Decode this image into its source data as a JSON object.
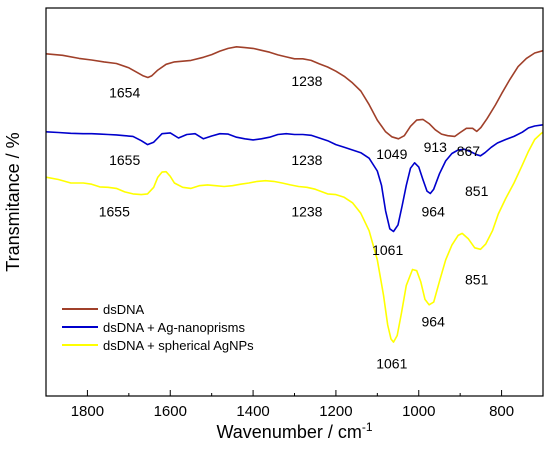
{
  "chart_data": {
    "type": "line",
    "title": "",
    "xlabel": "Wavenumber / cm",
    "xlabel_superscript": "-1",
    "ylabel": "Transmitance / %",
    "xlim": [
      1900,
      700
    ],
    "ylim": [
      0,
      100
    ],
    "x_reversed": true,
    "grid": false,
    "y_tick_labels": false,
    "legend_position": "bottom-left",
    "x_ticks": [
      {
        "value": 1800,
        "label": "1800"
      },
      {
        "value": 1600,
        "label": "1600"
      },
      {
        "value": 1400,
        "label": "1400"
      },
      {
        "value": 1200,
        "label": "1200"
      },
      {
        "value": 1000,
        "label": "1000"
      },
      {
        "value": 800,
        "label": "800"
      }
    ],
    "series": [
      {
        "name": "dsDNA",
        "color": "#a0402a",
        "points": [
          [
            1900,
            88.2
          ],
          [
            1860,
            87.8
          ],
          [
            1820,
            87.0
          ],
          [
            1790,
            86.6
          ],
          [
            1760,
            86.1
          ],
          [
            1730,
            85.7
          ],
          [
            1700,
            84.6
          ],
          [
            1680,
            83.4
          ],
          [
            1665,
            82.5
          ],
          [
            1654,
            82.1
          ],
          [
            1645,
            82.5
          ],
          [
            1630,
            84.0
          ],
          [
            1610,
            85.5
          ],
          [
            1590,
            86.1
          ],
          [
            1570,
            86.3
          ],
          [
            1550,
            86.5
          ],
          [
            1520,
            87.3
          ],
          [
            1500,
            88.0
          ],
          [
            1480,
            88.9
          ],
          [
            1460,
            89.6
          ],
          [
            1440,
            90.0
          ],
          [
            1420,
            89.8
          ],
          [
            1400,
            89.6
          ],
          [
            1380,
            89.1
          ],
          [
            1360,
            88.6
          ],
          [
            1340,
            87.9
          ],
          [
            1320,
            87.4
          ],
          [
            1300,
            86.9
          ],
          [
            1280,
            86.9
          ],
          [
            1260,
            86.5
          ],
          [
            1240,
            85.6
          ],
          [
            1220,
            84.8
          ],
          [
            1200,
            83.7
          ],
          [
            1180,
            82.4
          ],
          [
            1160,
            80.7
          ],
          [
            1140,
            78.6
          ],
          [
            1120,
            75.1
          ],
          [
            1100,
            71.1
          ],
          [
            1080,
            68.1
          ],
          [
            1065,
            66.8
          ],
          [
            1049,
            66.3
          ],
          [
            1035,
            67.1
          ],
          [
            1020,
            69.5
          ],
          [
            1005,
            71.1
          ],
          [
            990,
            71.3
          ],
          [
            975,
            70.2
          ],
          [
            960,
            68.6
          ],
          [
            945,
            67.5
          ],
          [
            930,
            67.1
          ],
          [
            913,
            66.9
          ],
          [
            900,
            67.9
          ],
          [
            885,
            69.0
          ],
          [
            870,
            69.0
          ],
          [
            860,
            68.2
          ],
          [
            850,
            69.2
          ],
          [
            835,
            71.5
          ],
          [
            815,
            75.0
          ],
          [
            800,
            77.9
          ],
          [
            780,
            81.6
          ],
          [
            760,
            84.9
          ],
          [
            740,
            87.0
          ],
          [
            720,
            88.4
          ],
          [
            700,
            89.0
          ]
        ]
      },
      {
        "name": "dsDNA + Ag-nanoprisms",
        "color": "#0000cc",
        "points": [
          [
            1900,
            68.1
          ],
          [
            1870,
            67.9
          ],
          [
            1840,
            67.7
          ],
          [
            1810,
            67.6
          ],
          [
            1790,
            67.6
          ],
          [
            1770,
            67.5
          ],
          [
            1750,
            67.4
          ],
          [
            1730,
            67.3
          ],
          [
            1710,
            67.1
          ],
          [
            1690,
            66.9
          ],
          [
            1670,
            65.8
          ],
          [
            1655,
            64.8
          ],
          [
            1640,
            65.4
          ],
          [
            1630,
            66.5
          ],
          [
            1620,
            67.6
          ],
          [
            1600,
            67.8
          ],
          [
            1580,
            66.5
          ],
          [
            1560,
            67.4
          ],
          [
            1540,
            67.6
          ],
          [
            1520,
            66.3
          ],
          [
            1500,
            67.0
          ],
          [
            1480,
            67.6
          ],
          [
            1460,
            67.5
          ],
          [
            1440,
            66.7
          ],
          [
            1420,
            66.3
          ],
          [
            1400,
            66.0
          ],
          [
            1380,
            66.3
          ],
          [
            1360,
            66.7
          ],
          [
            1340,
            67.4
          ],
          [
            1320,
            67.6
          ],
          [
            1300,
            67.4
          ],
          [
            1280,
            67.4
          ],
          [
            1260,
            67.2
          ],
          [
            1240,
            66.5
          ],
          [
            1220,
            65.8
          ],
          [
            1200,
            64.8
          ],
          [
            1180,
            64.1
          ],
          [
            1160,
            63.4
          ],
          [
            1140,
            62.7
          ],
          [
            1120,
            61.3
          ],
          [
            1100,
            58.0
          ],
          [
            1090,
            54.3
          ],
          [
            1080,
            47.7
          ],
          [
            1070,
            43.1
          ],
          [
            1061,
            42.4
          ],
          [
            1050,
            44.1
          ],
          [
            1040,
            49.1
          ],
          [
            1030,
            54.3
          ],
          [
            1020,
            58.7
          ],
          [
            1010,
            60.1
          ],
          [
            1000,
            59.0
          ],
          [
            990,
            55.8
          ],
          [
            980,
            52.8
          ],
          [
            972,
            52.2
          ],
          [
            964,
            53.3
          ],
          [
            950,
            57.3
          ],
          [
            935,
            60.6
          ],
          [
            920,
            62.5
          ],
          [
            905,
            63.4
          ],
          [
            890,
            63.6
          ],
          [
            875,
            63.0
          ],
          [
            860,
            62.2
          ],
          [
            851,
            61.9
          ],
          [
            840,
            62.7
          ],
          [
            825,
            64.1
          ],
          [
            810,
            65.2
          ],
          [
            790,
            66.1
          ],
          [
            770,
            66.9
          ],
          [
            750,
            68.0
          ],
          [
            735,
            69.1
          ],
          [
            720,
            69.6
          ],
          [
            700,
            69.9
          ]
        ]
      },
      {
        "name": "dsDNA + spherical AgNPs",
        "color": "#ffff00",
        "points": [
          [
            1900,
            56.4
          ],
          [
            1870,
            55.8
          ],
          [
            1840,
            54.9
          ],
          [
            1810,
            54.9
          ],
          [
            1790,
            54.6
          ],
          [
            1770,
            53.9
          ],
          [
            1750,
            53.8
          ],
          [
            1730,
            53.5
          ],
          [
            1710,
            52.6
          ],
          [
            1690,
            52.1
          ],
          [
            1670,
            51.9
          ],
          [
            1655,
            52.1
          ],
          [
            1640,
            53.8
          ],
          [
            1630,
            56.4
          ],
          [
            1620,
            57.7
          ],
          [
            1610,
            57.8
          ],
          [
            1600,
            56.6
          ],
          [
            1590,
            54.9
          ],
          [
            1570,
            53.8
          ],
          [
            1550,
            53.5
          ],
          [
            1530,
            54.2
          ],
          [
            1510,
            54.4
          ],
          [
            1490,
            54.2
          ],
          [
            1470,
            54.0
          ],
          [
            1450,
            54.2
          ],
          [
            1430,
            54.6
          ],
          [
            1410,
            54.9
          ],
          [
            1390,
            55.3
          ],
          [
            1370,
            55.5
          ],
          [
            1350,
            55.3
          ],
          [
            1330,
            54.9
          ],
          [
            1310,
            54.4
          ],
          [
            1290,
            54.0
          ],
          [
            1270,
            53.8
          ],
          [
            1250,
            53.3
          ],
          [
            1238,
            52.8
          ],
          [
            1220,
            52.1
          ],
          [
            1200,
            51.9
          ],
          [
            1180,
            51.2
          ],
          [
            1160,
            49.8
          ],
          [
            1140,
            47.1
          ],
          [
            1120,
            42.6
          ],
          [
            1100,
            35.1
          ],
          [
            1085,
            26.0
          ],
          [
            1075,
            18.3
          ],
          [
            1067,
            14.7
          ],
          [
            1061,
            13.9
          ],
          [
            1052,
            15.6
          ],
          [
            1042,
            21.3
          ],
          [
            1030,
            28.5
          ],
          [
            1015,
            32.6
          ],
          [
            1005,
            32.3
          ],
          [
            995,
            29.4
          ],
          [
            985,
            24.9
          ],
          [
            975,
            23.5
          ],
          [
            964,
            24.2
          ],
          [
            950,
            29.6
          ],
          [
            935,
            35.1
          ],
          [
            920,
            38.9
          ],
          [
            905,
            41.4
          ],
          [
            895,
            41.9
          ],
          [
            880,
            40.5
          ],
          [
            865,
            38.2
          ],
          [
            851,
            37.8
          ],
          [
            838,
            39.2
          ],
          [
            822,
            42.6
          ],
          [
            808,
            46.9
          ],
          [
            790,
            50.9
          ],
          [
            770,
            54.9
          ],
          [
            750,
            59.5
          ],
          [
            735,
            63.1
          ],
          [
            720,
            66.1
          ],
          [
            705,
            67.6
          ],
          [
            700,
            68.0
          ]
        ]
      }
    ],
    "annotations": [
      {
        "text": "1654",
        "x": 1710,
        "y": 76.9
      },
      {
        "text": "1238",
        "x": 1270,
        "y": 79.9
      },
      {
        "text": "1049",
        "x": 1065,
        "y": 61.1
      },
      {
        "text": "913",
        "x": 960,
        "y": 62.9
      },
      {
        "text": "867",
        "x": 880,
        "y": 61.8
      },
      {
        "text": "1655",
        "x": 1710,
        "y": 59.5
      },
      {
        "text": "1238",
        "x": 1270,
        "y": 59.5
      },
      {
        "text": "964",
        "x": 965,
        "y": 46.2
      },
      {
        "text": "851",
        "x": 860,
        "y": 51.6
      },
      {
        "text": "1655",
        "x": 1735,
        "y": 46.2
      },
      {
        "text": "1238",
        "x": 1270,
        "y": 46.2
      },
      {
        "text": "1061",
        "x": 1075,
        "y": 36.3
      },
      {
        "text": "851",
        "x": 860,
        "y": 28.8
      },
      {
        "text": "964",
        "x": 965,
        "y": 17.9
      },
      {
        "text": "1061",
        "x": 1065,
        "y": 7.1
      }
    ]
  }
}
